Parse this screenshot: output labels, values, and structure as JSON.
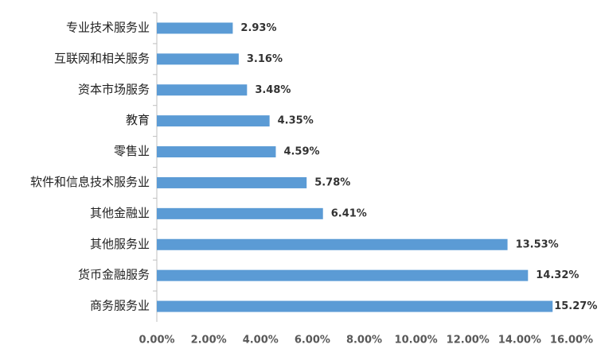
{
  "chart_data": {
    "type": "barh",
    "categories": [
      "专业技术服务业",
      "互联网和相关服务",
      "资本市场服务",
      "教育",
      "零售业",
      "软件和信息技术服务业",
      "其他金融业",
      "其他服务业",
      "货币金融服务",
      "商务服务业"
    ],
    "values": [
      2.93,
      3.16,
      3.48,
      4.35,
      4.59,
      5.78,
      6.41,
      13.53,
      14.32,
      15.27
    ],
    "value_labels": [
      "2.93%",
      "3.16%",
      "3.48%",
      "4.35%",
      "4.59%",
      "5.78%",
      "6.41%",
      "13.53%",
      "14.32%",
      "15.27%"
    ],
    "color": "#5b9bd5",
    "xlim": [
      0,
      16
    ],
    "xticks": [
      {
        "value": 0,
        "label": "0.00%"
      },
      {
        "value": 2,
        "label": "2.00%"
      },
      {
        "value": 4,
        "label": "4.00%"
      },
      {
        "value": 6,
        "label": "6.00%"
      },
      {
        "value": 8,
        "label": "8.00%"
      },
      {
        "value": 10,
        "label": "10.00%"
      },
      {
        "value": 12,
        "label": "12.00%"
      },
      {
        "value": 14,
        "label": "14.00%"
      },
      {
        "value": 16,
        "label": "16.00%"
      }
    ]
  }
}
